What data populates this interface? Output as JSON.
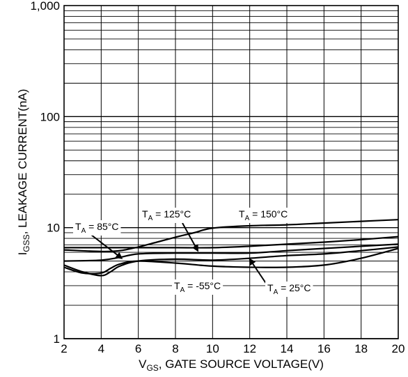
{
  "chart_data": {
    "type": "line",
    "title": "",
    "xlabel": {
      "main": "V",
      "sub": "GS",
      "rest": ", GATE SOURCE VOLTAGE(V)"
    },
    "ylabel": {
      "main": "I",
      "sub": "GSS",
      "rest": ", LEAKAGE CURRENT(nA)"
    },
    "x_scale": "linear",
    "y_scale": "log",
    "xlim": [
      2,
      20
    ],
    "ylim": [
      1,
      1000
    ],
    "grid": true,
    "x_ticks": [
      2,
      4,
      6,
      8,
      10,
      12,
      14,
      16,
      18,
      20
    ],
    "x_tick_labels": [
      "2",
      "4",
      "6",
      "8",
      "10",
      "12",
      "14",
      "16",
      "18",
      "20"
    ],
    "y_ticks": [
      1,
      10,
      100,
      1000
    ],
    "y_tick_labels": [
      "1",
      "10",
      "100",
      "1,000"
    ],
    "series": [
      {
        "name": "T = 150°C",
        "x": [
          2,
          4,
          5,
          6,
          7,
          8,
          9,
          10,
          12,
          14,
          16,
          18,
          20
        ],
        "y": [
          6.3,
          6.1,
          6.2,
          6.7,
          7.4,
          8.2,
          9.0,
          9.9,
          10.4,
          10.6,
          11.0,
          11.4,
          11.8
        ]
      },
      {
        "name": "T = 125°C",
        "x": [
          2,
          4,
          6,
          8,
          10,
          12,
          14,
          16,
          18,
          20
        ],
        "y": [
          6.6,
          6.6,
          6.6,
          6.6,
          6.6,
          6.8,
          7.1,
          7.4,
          7.8,
          8.3
        ]
      },
      {
        "name": "T = 85°C",
        "x": [
          2,
          4,
          5,
          6,
          8,
          10,
          12,
          14,
          16,
          18,
          20
        ],
        "y": [
          5.0,
          5.1,
          5.4,
          5.8,
          5.9,
          5.9,
          5.9,
          6.2,
          6.5,
          6.8,
          7.1
        ]
      },
      {
        "name": "T = -55°C",
        "x": [
          2,
          3,
          4,
          4.5,
          5,
          6,
          8,
          10,
          12,
          14,
          16,
          18,
          20
        ],
        "y": [
          4.6,
          4.0,
          3.7,
          4.0,
          4.5,
          5.0,
          5.2,
          5.1,
          5.3,
          5.6,
          5.8,
          6.2,
          6.7
        ]
      },
      {
        "name": "T = 25°C",
        "x": [
          2,
          3,
          4,
          4.5,
          5,
          6,
          8,
          10,
          12,
          14,
          16,
          18,
          20
        ],
        "y": [
          4.4,
          3.9,
          3.9,
          4.3,
          4.7,
          5.0,
          4.8,
          4.5,
          4.4,
          4.4,
          4.6,
          5.3,
          6.5
        ]
      }
    ],
    "annotations": [
      {
        "label": {
          "main": "T",
          "sub": "A",
          "rest": " = 85°C"
        },
        "points_to": {
          "x": 5.1,
          "y": 5.3
        }
      },
      {
        "label": {
          "main": "T",
          "sub": "A",
          "rest": " = 125°C"
        },
        "points_to": {
          "x": 9.2,
          "y": 6.2
        }
      },
      {
        "label": {
          "main": "T",
          "sub": "A",
          "rest": " = 150°C"
        },
        "points_to": null
      },
      {
        "label": {
          "main": "T",
          "sub": "A",
          "rest": " = -55°C"
        },
        "points_to": null
      },
      {
        "label": {
          "main": "T",
          "sub": "A",
          "rest": " = 25°C"
        },
        "points_to": {
          "x": 12.0,
          "y": 5.2
        }
      }
    ]
  }
}
